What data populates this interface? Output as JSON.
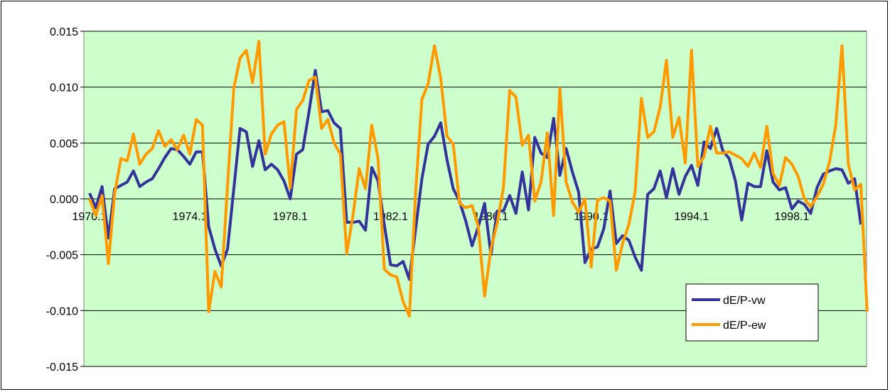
{
  "chart_data": {
    "type": "line",
    "title": "",
    "xlabel": "",
    "ylabel": "",
    "ylim": [
      -0.015,
      0.015
    ],
    "yticks": [
      "0.015",
      "0.010",
      "0.005",
      "0.000",
      "-0.005",
      "-0.010",
      "-0.015"
    ],
    "ytick_values": [
      0.015,
      0.01,
      0.005,
      0.0,
      -0.005,
      -0.01,
      -0.015
    ],
    "xtick_labels": [
      "1970.1",
      "1974.1",
      "1978.1",
      "1982.1",
      "1986.1",
      "1990.1",
      "1994.1",
      "1998.1"
    ],
    "xtick_index": [
      0,
      16,
      32,
      48,
      64,
      80,
      96,
      112
    ],
    "grid": true,
    "legend_position": "bottom-right",
    "plot_background": "#ccffcc",
    "x_start": "1970.1",
    "x_frequency": "quarterly",
    "series": [
      {
        "name": "dE/P-vw",
        "color": "#333399",
        "values": [
          0.0005,
          -0.0008,
          0.0011,
          -0.0035,
          0.0009,
          0.0012,
          0.0015,
          0.0025,
          0.0011,
          0.0015,
          0.0018,
          0.0027,
          0.0037,
          0.0045,
          0.0044,
          0.0038,
          0.0031,
          0.0042,
          0.0042,
          -0.0025,
          -0.0045,
          -0.006,
          -0.0045,
          0.0009,
          0.0063,
          0.006,
          0.0029,
          0.0052,
          0.0026,
          0.0031,
          0.0026,
          0.0016,
          0.0,
          0.004,
          0.0044,
          0.0078,
          0.0115,
          0.0078,
          0.0079,
          0.0068,
          0.0063,
          -0.0021,
          -0.0021,
          -0.002,
          -0.0028,
          0.0028,
          0.0016,
          -0.0023,
          -0.0059,
          -0.006,
          -0.0056,
          -0.0072,
          -0.0027,
          0.0018,
          0.0049,
          0.0056,
          0.0068,
          0.0035,
          0.0009,
          -0.0002,
          -0.002,
          -0.0042,
          -0.0025,
          -0.0004,
          -0.005,
          -0.0011,
          -0.0011,
          0.0003,
          -0.0013,
          0.0024,
          -0.001,
          0.0055,
          0.0041,
          0.0037,
          0.0072,
          0.0021,
          0.0045,
          0.0024,
          0.0006,
          -0.0057,
          -0.0045,
          -0.0043,
          -0.0027,
          0.0007,
          -0.004,
          -0.0033,
          -0.0037,
          -0.0052,
          -0.0064,
          0.0004,
          0.0009,
          0.0025,
          0.0001,
          0.0027,
          0.0004,
          0.002,
          0.003,
          0.0012,
          0.0051,
          0.0045,
          0.0063,
          0.0043,
          0.0036,
          0.0016,
          -0.0019,
          0.0014,
          0.0011,
          0.0011,
          0.0043,
          0.0015,
          0.0008,
          0.001,
          -0.0009,
          -0.0002,
          -0.0005,
          -0.0013,
          0.001,
          0.0022,
          0.0025,
          0.0027,
          0.0026,
          0.0014,
          0.0018,
          -0.0023
        ]
      },
      {
        "name": "dE/P-ew",
        "color": "#ff9900",
        "values": [
          0.0,
          -0.0015,
          0.0003,
          -0.0058,
          0.0005,
          0.0036,
          0.0034,
          0.0058,
          0.0031,
          0.004,
          0.0045,
          0.0061,
          0.0047,
          0.0053,
          0.0044,
          0.0057,
          0.004,
          0.0071,
          0.0066,
          -0.0101,
          -0.0065,
          -0.0079,
          0.0012,
          0.0099,
          0.0126,
          0.0133,
          0.0104,
          0.0141,
          0.004,
          0.0058,
          0.0066,
          0.0069,
          0.001,
          0.008,
          0.0088,
          0.0106,
          0.0109,
          0.0063,
          0.0071,
          0.005,
          0.004,
          -0.0049,
          -0.0015,
          0.0027,
          0.0009,
          0.0066,
          0.0036,
          -0.0063,
          -0.0068,
          -0.007,
          -0.0092,
          -0.0105,
          0.0006,
          0.0089,
          0.0103,
          0.0137,
          0.0108,
          0.0056,
          0.0049,
          -0.0004,
          -0.0008,
          -0.0006,
          -0.0025,
          -0.0087,
          -0.0045,
          -0.0022,
          0.001,
          0.0097,
          0.0091,
          0.0048,
          0.0057,
          -0.0002,
          0.0015,
          0.0059,
          -0.0015,
          0.0099,
          0.0015,
          -0.0003,
          -0.0012,
          0.0,
          -0.0061,
          -0.0001,
          0.0001,
          -0.0002,
          -0.0064,
          -0.004,
          -0.0023,
          0.0006,
          0.009,
          0.0055,
          0.006,
          0.0082,
          0.0124,
          0.0055,
          0.0073,
          0.0032,
          0.0133,
          0.0029,
          0.0038,
          0.0065,
          0.0041,
          0.0041,
          0.0042,
          0.0039,
          0.0036,
          0.0029,
          0.0041,
          0.0028,
          0.0065,
          0.0023,
          0.0012,
          0.0037,
          0.0031,
          0.002,
          0.0,
          -0.0007,
          0.0002,
          0.0013,
          0.0033,
          0.0066,
          0.0137,
          0.0031,
          0.0008,
          0.0013,
          -0.0101
        ]
      }
    ]
  }
}
